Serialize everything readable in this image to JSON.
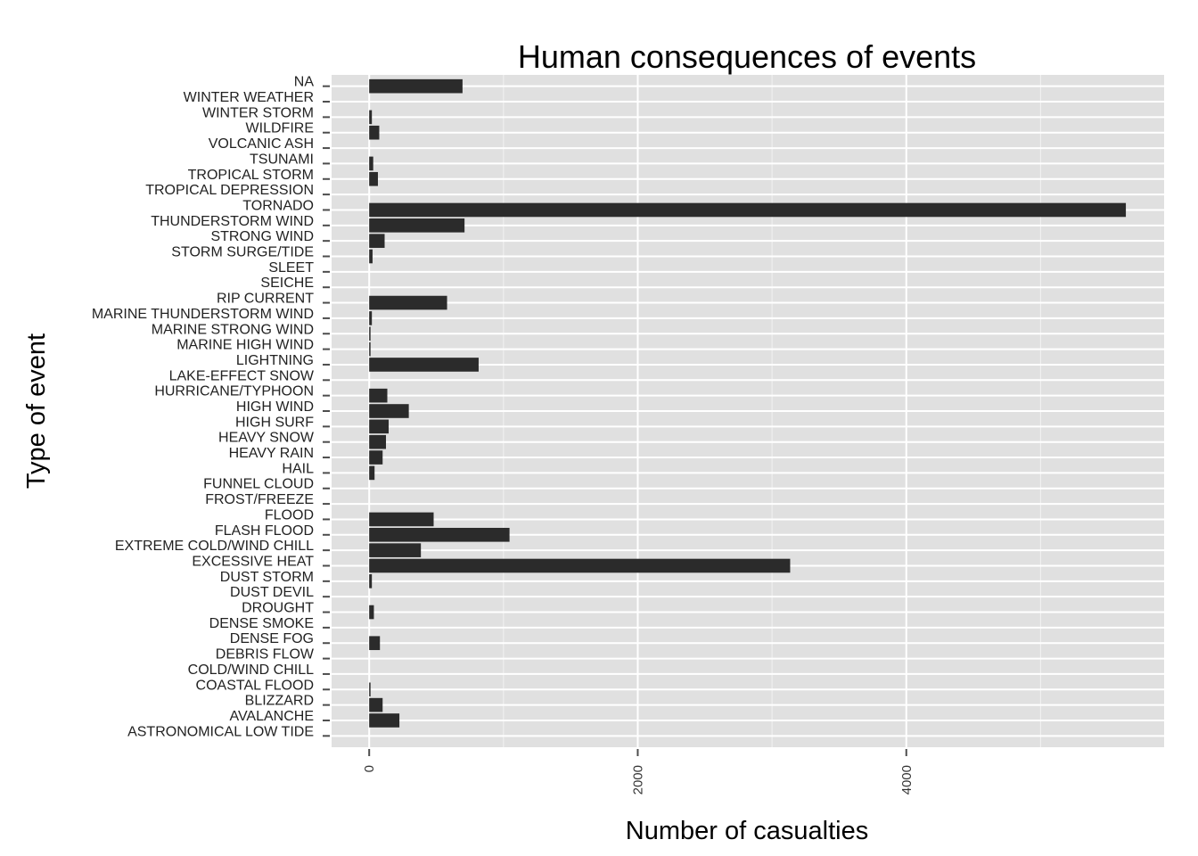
{
  "chart_data": {
    "type": "bar",
    "orientation": "horizontal",
    "title": "Human consequences of events",
    "xlabel": "Number of casualties",
    "ylabel": "Type of event",
    "xlim": [
      -280,
      5920
    ],
    "x_ticks": [
      0,
      2000,
      4000
    ],
    "x_tick_labels": [
      "0",
      "2000",
      "4000"
    ],
    "x_minor_ticks": [
      1000,
      3000,
      5000
    ],
    "grid": true,
    "legend": "none",
    "colors": {
      "panel": "#e0e0e0",
      "grid": "#ffffff",
      "bar": "#2b2b2b"
    },
    "categories": [
      "ASTRONOMICAL LOW TIDE",
      "AVALANCHE",
      "BLIZZARD",
      "COASTAL FLOOD",
      "COLD/WIND CHILL",
      "DEBRIS FLOW",
      "DENSE FOG",
      "DENSE SMOKE",
      "DROUGHT",
      "DUST DEVIL",
      "DUST STORM",
      "EXCESSIVE HEAT",
      "EXTREME COLD/WIND CHILL",
      "FLASH FLOOD",
      "FLOOD",
      "FROST/FREEZE",
      "FUNNEL CLOUD",
      "HAIL",
      "HEAVY RAIN",
      "HEAVY SNOW",
      "HIGH SURF",
      "HIGH WIND",
      "HURRICANE/TYPHOON",
      "LAKE-EFFECT SNOW",
      "LIGHTNING",
      "MARINE HIGH WIND",
      "MARINE STRONG WIND",
      "MARINE THUNDERSTORM WIND",
      "RIP CURRENT",
      "SEICHE",
      "SLEET",
      "STORM SURGE/TIDE",
      "STRONG WIND",
      "THUNDERSTORM WIND",
      "TORNADO",
      "TROPICAL DEPRESSION",
      "TROPICAL STORM",
      "TSUNAMI",
      "VOLCANIC ASH",
      "WILDFIRE",
      "WINTER STORM",
      "WINTER WEATHER",
      "NA"
    ],
    "values": [
      0,
      225,
      100,
      5,
      0,
      0,
      80,
      0,
      35,
      0,
      20,
      3135,
      385,
      1045,
      480,
      0,
      0,
      40,
      100,
      125,
      145,
      295,
      135,
      0,
      815,
      5,
      10,
      20,
      580,
      0,
      0,
      25,
      115,
      710,
      5635,
      0,
      65,
      30,
      0,
      75,
      20,
      0,
      695
    ]
  }
}
